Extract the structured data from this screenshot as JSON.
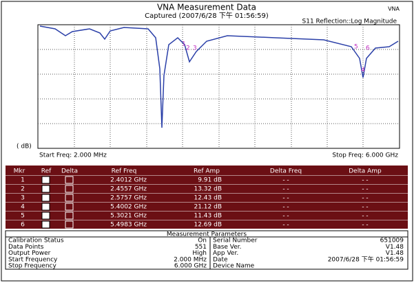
{
  "header": {
    "title": "VNA Measurement Data",
    "captured": "Captured  (2007/6/28 下午 01:56:59)",
    "badge": "VNA",
    "trace_label": "S11 Reflection::Log Magnitude",
    "y_unit": "( dB)",
    "start": "Start Freq: 2.000 MHz",
    "stop": "Stop Freq: 6.000 GHz"
  },
  "markers": {
    "headers": [
      "Mkr",
      "Ref",
      "Delta",
      "Ref Freq",
      "Ref Amp",
      "Delta Freq",
      "Delta Amp"
    ],
    "rows": [
      [
        "1",
        "2.4012 GHz",
        "9.91 dB",
        "- -",
        "- -"
      ],
      [
        "2",
        "2.4557 GHz",
        "13.32 dB",
        "- -",
        "- -"
      ],
      [
        "3",
        "2.5757 GHz",
        "12.43 dB",
        "- -",
        "- -"
      ],
      [
        "4",
        "5.4002 GHz",
        "21.12 dB",
        "- -",
        "- -"
      ],
      [
        "5",
        "5.3021 GHz",
        "11.43 dB",
        "- -",
        "- -"
      ],
      [
        "6",
        "5.4983 GHz",
        "12.69 dB",
        "- -",
        "- -"
      ]
    ]
  },
  "params": {
    "title": "Measurement Parameters",
    "rows": [
      [
        "Calibration Status",
        "On",
        "Serial Number",
        "651009"
      ],
      [
        "Data Points",
        "551",
        "Base Ver.",
        "V1.48"
      ],
      [
        "Output Power",
        "High",
        "App Ver.",
        "V1.48"
      ],
      [
        "Start Frequency",
        "2.000 MHz",
        "Date",
        "2007/6/28 下午 01:56:59"
      ],
      [
        "Stop Frequency",
        "6.000 GHz",
        "Device Name",
        ""
      ]
    ]
  }
}
